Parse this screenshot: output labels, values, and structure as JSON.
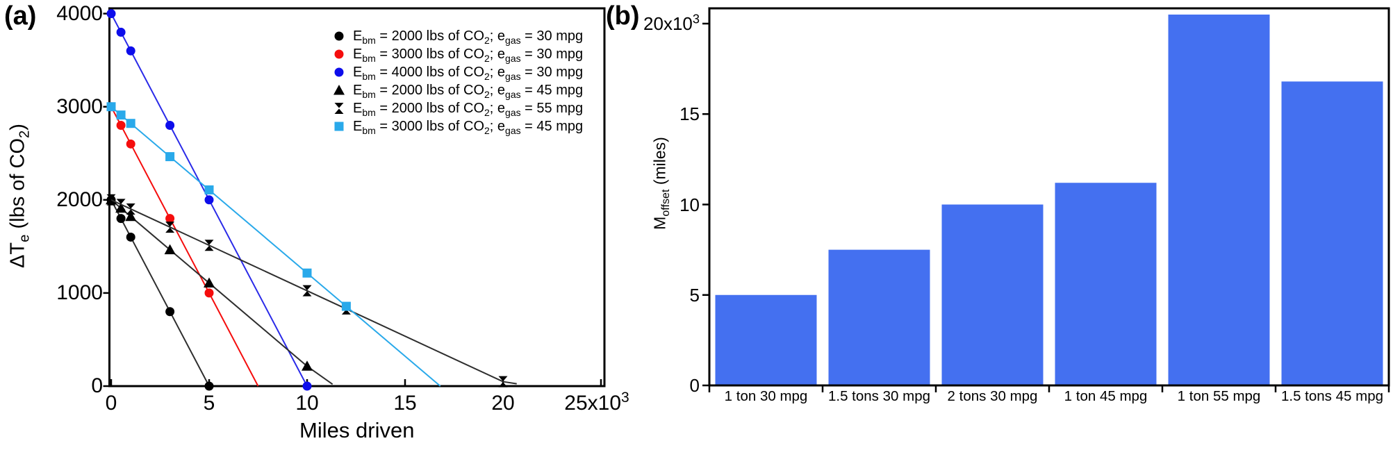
{
  "page": {
    "background": "#ffffff"
  },
  "panels": {
    "a": {
      "label": "(a)"
    },
    "b": {
      "label": "(b)"
    }
  },
  "chart_data": [
    {
      "id": "a",
      "type": "line",
      "title": "",
      "xlabel": "Miles driven",
      "ylabel": "ΔT_{e} (lbs of CO_{2})",
      "xlim": [
        0,
        25000
      ],
      "ylim": [
        0,
        4050
      ],
      "grid": false,
      "legend_position": "top-right",
      "x_ticks": [
        {
          "v": 0,
          "label": "0"
        },
        {
          "v": 5000,
          "label": "5"
        },
        {
          "v": 10000,
          "label": "10"
        },
        {
          "v": 15000,
          "label": "15"
        },
        {
          "v": 20000,
          "label": "20"
        },
        {
          "v": 25000,
          "label": "25x10^{3}"
        }
      ],
      "y_ticks": [
        {
          "v": 0,
          "label": "0"
        },
        {
          "v": 1000,
          "label": "1000"
        },
        {
          "v": 2000,
          "label": "2000"
        },
        {
          "v": 3000,
          "label": "3000"
        },
        {
          "v": 4000,
          "label": "4000"
        }
      ],
      "series": [
        {
          "name": "E_{bm} = 2000 lbs of CO_{2}; e_{gas} = 30 mpg",
          "marker": "circle",
          "color": "#000000",
          "line_color": "#2e2e2e",
          "x": [
            0,
            500,
            1000,
            3000,
            5000
          ],
          "y": [
            2000,
            1800,
            1600,
            800,
            0
          ]
        },
        {
          "name": "E_{bm} = 3000 lbs of CO_{2}; e_{gas} = 30 mpg",
          "marker": "circle",
          "color": "#f50d0d",
          "line_color": "#f50d0d",
          "x": [
            0,
            500,
            1000,
            3000,
            5000
          ],
          "y": [
            3000,
            2800,
            2600,
            1800,
            1000
          ],
          "line_end": [
            7500,
            0
          ]
        },
        {
          "name": "E_{bm} = 4000 lbs of CO_{2}; e_{gas} = 30 mpg",
          "marker": "circle",
          "color": "#0d0deb",
          "line_color": "#2a2ae8",
          "x": [
            0,
            500,
            1000,
            3000,
            5000,
            10000
          ],
          "y": [
            4000,
            3800,
            3600,
            2800,
            2000,
            0
          ]
        },
        {
          "name": "E_{bm} = 2000 lbs of CO_{2}; e_{gas} = 45 mpg",
          "marker": "triangle",
          "color": "#000000",
          "line_color": "#2e2e2e",
          "x": [
            0,
            500,
            1000,
            3000,
            5000,
            10000
          ],
          "y": [
            2000,
            1911,
            1821,
            1464,
            1107,
            214
          ],
          "line_end": [
            11300,
            20
          ]
        },
        {
          "name": "E_{bm} = 2000 lbs of CO_{2}; e_{gas} = 55 mpg",
          "marker": "hourglass",
          "color": "#000000",
          "line_color": "#2e2e2e",
          "x": [
            0,
            500,
            1000,
            3000,
            5000,
            10000,
            12000,
            20000
          ],
          "y": [
            2000,
            1951,
            1902,
            1707,
            1512,
            1024,
            829,
            48
          ],
          "line_end": [
            20700,
            25
          ]
        },
        {
          "name": "E_{bm} = 3000 lbs of CO_{2}; e_{gas} = 45 mpg",
          "marker": "square",
          "color": "#29a9ea",
          "line_color": "#29a9ea",
          "x": [
            0,
            500,
            1000,
            3000,
            5000,
            10000,
            12000
          ],
          "y": [
            3000,
            2911,
            2821,
            2464,
            2107,
            1214,
            857
          ],
          "line_end": [
            16800,
            0
          ]
        }
      ]
    },
    {
      "id": "b",
      "type": "bar",
      "title": "",
      "xlabel": "",
      "ylabel": "M_{offset} (miles)",
      "ylim": [
        0,
        20850
      ],
      "grid": false,
      "bar_color": "#4470f0",
      "categories": [
        "1 ton 30 mpg",
        "1.5 tons 30 mpg",
        "2 tons 30 mpg",
        "1 ton 45 mpg",
        "1 ton 55 mpg",
        "1.5 tons 45 mpg"
      ],
      "values": [
        5000,
        7500,
        10000,
        11200,
        20500,
        16800
      ],
      "y_ticks": [
        {
          "v": 0,
          "label": "0"
        },
        {
          "v": 5000,
          "label": "5"
        },
        {
          "v": 10000,
          "label": "10"
        },
        {
          "v": 15000,
          "label": "15"
        },
        {
          "v": 20000,
          "label": "20x10^{3}"
        }
      ]
    }
  ]
}
